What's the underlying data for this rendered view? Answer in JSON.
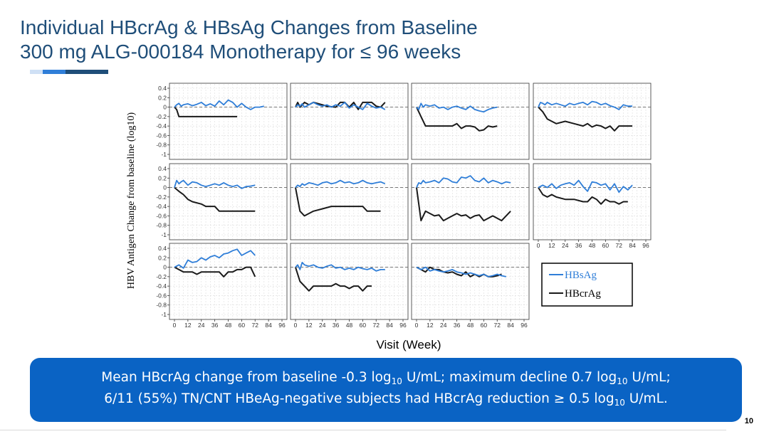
{
  "slide": {
    "title_line1": "Individual HBcrAg & HBsAg Changes from Baseline",
    "title_line2": "300 mg ALG-000184 Monotherapy for ≤ 96 weeks",
    "page_number": "10",
    "accent_colors": [
      "#cfe0f5",
      "#2f7ed8",
      "#1f4e79"
    ]
  },
  "callout": {
    "line1_a": "Mean HBcrAg change from baseline -0.3 log",
    "line1_sub1": "10",
    "line1_b": " U/mL; maximum decline 0.7 log",
    "line1_sub2": "10",
    "line1_c": " U/mL;",
    "line2_a": "6/11 (55%) TN/CNT HBeAg-negative subjects had HBcrAg reduction ≥ 0.5 log",
    "line2_sub": "10",
    "line2_b": " U/mL.",
    "background": "#0a63c4"
  },
  "chart_data": {
    "type": "line",
    "layout": "small multiples, 3 rows x 4 columns, 11 panels",
    "ylabel": "HBV Antigen Change from baseline (log10)",
    "xlabel": "Visit (Week)",
    "ylim": [
      -1,
      0.4
    ],
    "yticks": [
      "0.4",
      "0.2",
      "0",
      "-0.2",
      "-0.4",
      "-0.6",
      "-0.8",
      "-1"
    ],
    "xlim": [
      0,
      96
    ],
    "xticks": [
      "0",
      "12",
      "24",
      "36",
      "48",
      "60",
      "72",
      "84",
      "96"
    ],
    "grid": true,
    "reference_line": 0,
    "legend": [
      "HBsAg",
      "HBcrAg"
    ],
    "legend_position": "bottom-right",
    "colors": {
      "HBsAg": "#2f7ed8",
      "HBcrAg": "#1a1a1a"
    },
    "panels": [
      {
        "HBsAg": {
          "x": [
            0,
            2,
            4,
            6,
            8,
            12,
            16,
            20,
            24,
            28,
            32,
            36,
            40,
            44,
            48,
            52,
            56,
            60,
            64,
            68,
            72,
            76,
            80
          ],
          "y": [
            0,
            0.05,
            0.08,
            0.02,
            0.05,
            0.07,
            0.03,
            0.06,
            0.1,
            0.03,
            0.07,
            0.02,
            0.13,
            0.05,
            0.15,
            0.1,
            0,
            0.08,
            0,
            -0.05,
            0,
            0,
            0.02
          ]
        },
        "HBcrAg": {
          "x": [
            0,
            2,
            4,
            56
          ],
          "y": [
            0,
            -0.05,
            -0.2,
            -0.2
          ]
        }
      },
      {
        "HBsAg": {
          "x": [
            0,
            2,
            4,
            6,
            8,
            12,
            16,
            20,
            24,
            28,
            32,
            36,
            40,
            44,
            48,
            52,
            56,
            60,
            64,
            68,
            72,
            76,
            80
          ],
          "y": [
            0,
            0.05,
            0.02,
            0.07,
            0,
            0.05,
            0.1,
            0.05,
            0.02,
            0.05,
            0,
            0.05,
            0.02,
            0.1,
            -0.02,
            0.05,
            0,
            -0.05,
            0.08,
            0.02,
            -0.02,
            0,
            -0.05
          ]
        },
        "HBcrAg": {
          "x": [
            0,
            2,
            4,
            6,
            8,
            12,
            16,
            24,
            28,
            36,
            40,
            44,
            48,
            52,
            56,
            60,
            64,
            68,
            72,
            76,
            80
          ],
          "y": [
            0,
            0.1,
            0,
            0.05,
            0.1,
            0.05,
            0.1,
            0.05,
            0.02,
            0,
            0.1,
            0.1,
            0,
            0.1,
            -0.05,
            0.1,
            0.1,
            0.1,
            0.02,
            0,
            0.1
          ]
        }
      },
      {
        "HBsAg": {
          "x": [
            0,
            2,
            4,
            6,
            8,
            12,
            16,
            20,
            24,
            28,
            32,
            36,
            40,
            44,
            48,
            52,
            56,
            60,
            64,
            68,
            72
          ],
          "y": [
            0,
            -0.05,
            0.08,
            0,
            0.05,
            0.02,
            0.05,
            -0.02,
            0,
            -0.05,
            0,
            0.02,
            -0.02,
            -0.05,
            0.02,
            -0.05,
            -0.08,
            -0.1,
            -0.05,
            -0.02,
            0
          ]
        },
        "HBcrAg": {
          "x": [
            0,
            4,
            8,
            24,
            32,
            36,
            40,
            44,
            48,
            52,
            56,
            60,
            64,
            68,
            72
          ],
          "y": [
            0,
            -0.2,
            -0.4,
            -0.4,
            -0.4,
            -0.35,
            -0.45,
            -0.4,
            -0.4,
            -0.42,
            -0.5,
            -0.48,
            -0.4,
            -0.42,
            -0.4
          ]
        }
      },
      {
        "HBsAg": {
          "x": [
            0,
            2,
            4,
            6,
            8,
            12,
            16,
            20,
            24,
            28,
            32,
            36,
            40,
            44,
            48,
            52,
            56,
            60,
            64,
            68,
            72,
            76,
            80,
            84
          ],
          "y": [
            0,
            0.1,
            0.08,
            0.05,
            0.1,
            0.05,
            0.08,
            0.05,
            0.02,
            0.08,
            0.05,
            0.08,
            0.1,
            0.05,
            0.12,
            0.1,
            0.05,
            0.08,
            0.03,
            0,
            -0.05,
            0.05,
            0.02,
            0.02
          ]
        },
        "HBcrAg": {
          "x": [
            0,
            4,
            8,
            12,
            16,
            24,
            32,
            40,
            44,
            48,
            52,
            56,
            60,
            64,
            68,
            72,
            76,
            80,
            84
          ],
          "y": [
            0,
            -0.1,
            -0.25,
            -0.3,
            -0.35,
            -0.3,
            -0.35,
            -0.4,
            -0.35,
            -0.42,
            -0.38,
            -0.4,
            -0.45,
            -0.4,
            -0.5,
            -0.4,
            -0.4,
            -0.4,
            -0.4
          ]
        }
      },
      {
        "HBsAg": {
          "x": [
            0,
            2,
            4,
            6,
            8,
            12,
            16,
            20,
            24,
            28,
            32,
            36,
            40,
            44,
            48,
            52,
            56,
            60,
            64,
            68,
            72
          ],
          "y": [
            0,
            0.15,
            0.08,
            0.12,
            0.15,
            0.05,
            0.12,
            0.1,
            0.05,
            0.02,
            0.05,
            0.08,
            0.05,
            0.1,
            0.05,
            0.02,
            0.05,
            -0.02,
            0.02,
            0.03,
            0.05
          ]
        },
        "HBcrAg": {
          "x": [
            0,
            4,
            8,
            12,
            16,
            24,
            28,
            32,
            36,
            40,
            44,
            72
          ],
          "y": [
            0,
            -0.08,
            -0.15,
            -0.25,
            -0.3,
            -0.35,
            -0.4,
            -0.4,
            -0.4,
            -0.5,
            -0.5,
            -0.5
          ]
        }
      },
      {
        "HBsAg": {
          "x": [
            0,
            2,
            4,
            6,
            8,
            12,
            16,
            20,
            24,
            28,
            32,
            36,
            40,
            44,
            48,
            52,
            56,
            60,
            64,
            68,
            72,
            76,
            80
          ],
          "y": [
            0,
            0.05,
            0.02,
            0.08,
            0.05,
            0.1,
            0.08,
            0.05,
            0.1,
            0.12,
            0.08,
            0.1,
            0.15,
            0.1,
            0.12,
            0.08,
            0.1,
            0.15,
            0.1,
            0.08,
            0.1,
            0.12,
            0.08
          ]
        },
        "HBcrAg": {
          "x": [
            0,
            4,
            8,
            16,
            24,
            32,
            40,
            56,
            60,
            64,
            68,
            72,
            76
          ],
          "y": [
            0,
            -0.5,
            -0.6,
            -0.5,
            -0.45,
            -0.4,
            -0.4,
            -0.4,
            -0.4,
            -0.5,
            -0.5,
            -0.5,
            -0.5
          ]
        }
      },
      {
        "HBsAg": {
          "x": [
            0,
            2,
            4,
            6,
            8,
            12,
            16,
            20,
            24,
            28,
            32,
            36,
            40,
            44,
            48,
            52,
            56,
            60,
            64,
            68,
            72,
            76,
            80,
            84
          ],
          "y": [
            0,
            0.1,
            0.08,
            0.15,
            0.1,
            0.12,
            0.15,
            0.1,
            0.2,
            0.18,
            0.12,
            0.1,
            0.22,
            0.2,
            0.25,
            0.15,
            0.12,
            0.2,
            0.1,
            0.15,
            0.12,
            0.08,
            0.12,
            0.1
          ]
        },
        "HBcrAg": {
          "x": [
            0,
            4,
            8,
            12,
            16,
            20,
            24,
            28,
            32,
            36,
            40,
            44,
            48,
            52,
            56,
            60,
            64,
            68,
            72,
            76,
            80,
            84
          ],
          "y": [
            0,
            -0.7,
            -0.5,
            -0.55,
            -0.6,
            -0.58,
            -0.7,
            -0.65,
            -0.6,
            -0.55,
            -0.6,
            -0.58,
            -0.65,
            -0.6,
            -0.58,
            -0.7,
            -0.65,
            -0.6,
            -0.65,
            -0.7,
            -0.6,
            -0.5
          ]
        }
      },
      {
        "HBsAg": {
          "x": [
            0,
            4,
            8,
            12,
            16,
            20,
            24,
            28,
            32,
            36,
            40,
            44,
            48,
            52,
            56,
            60,
            64,
            68,
            72,
            76,
            80,
            84
          ],
          "y": [
            0,
            0.05,
            0,
            0.08,
            -0.02,
            0.05,
            0.08,
            0.1,
            0.05,
            0.15,
            0.02,
            -0.08,
            0.12,
            0.1,
            0.05,
            0.08,
            -0.05,
            0.08,
            -0.1,
            0.02,
            -0.05,
            0.05
          ]
        },
        "HBcrAg": {
          "x": [
            0,
            4,
            8,
            12,
            16,
            24,
            32,
            40,
            44,
            48,
            52,
            56,
            60,
            64,
            68,
            72,
            76,
            80
          ],
          "y": [
            0,
            -0.15,
            -0.2,
            -0.15,
            -0.2,
            -0.25,
            -0.25,
            -0.3,
            -0.3,
            -0.2,
            -0.25,
            -0.35,
            -0.25,
            -0.3,
            -0.3,
            -0.35,
            -0.3,
            -0.3
          ]
        }
      },
      {
        "HBsAg": {
          "x": [
            0,
            4,
            8,
            12,
            16,
            20,
            24,
            28,
            32,
            36,
            40,
            44,
            48,
            52,
            56,
            60,
            64,
            68,
            72
          ],
          "y": [
            0,
            0.05,
            -0.02,
            0.15,
            0.1,
            0.12,
            0.2,
            0.15,
            0.22,
            0.25,
            0.2,
            0.28,
            0.3,
            0.35,
            0.38,
            0.25,
            0.3,
            0.35,
            0.25
          ]
        },
        "HBcrAg": {
          "x": [
            0,
            4,
            8,
            16,
            20,
            24,
            36,
            40,
            44,
            48,
            52,
            56,
            60,
            64,
            68,
            72
          ],
          "y": [
            0,
            -0.05,
            -0.1,
            -0.1,
            -0.15,
            -0.1,
            -0.1,
            -0.1,
            -0.2,
            -0.1,
            -0.1,
            -0.05,
            -0.05,
            0,
            0,
            -0.2
          ]
        }
      },
      {
        "HBsAg": {
          "x": [
            0,
            2,
            4,
            6,
            8,
            12,
            16,
            20,
            24,
            28,
            32,
            36,
            40,
            44,
            48,
            52,
            56,
            60,
            64,
            68,
            72,
            76,
            80
          ],
          "y": [
            0,
            0.05,
            -0.05,
            0.1,
            0.05,
            0.02,
            0.05,
            0,
            -0.02,
            0.02,
            0.05,
            -0.02,
            0,
            -0.05,
            -0.02,
            -0.05,
            0,
            -0.03,
            -0.05,
            -0.02,
            -0.08,
            -0.05,
            -0.05
          ]
        },
        "HBcrAg": {
          "x": [
            0,
            4,
            8,
            12,
            16,
            24,
            32,
            36,
            40,
            44,
            48,
            52,
            56,
            60,
            64,
            68
          ],
          "y": [
            0,
            -0.3,
            -0.4,
            -0.5,
            -0.4,
            -0.4,
            -0.4,
            -0.35,
            -0.4,
            -0.4,
            -0.45,
            -0.4,
            -0.4,
            -0.5,
            -0.4,
            -0.4
          ]
        }
      },
      {
        "HBsAg": {
          "x": [
            0,
            4,
            8,
            12,
            16,
            20,
            24,
            28,
            32,
            36,
            40,
            44,
            48,
            52,
            56,
            60,
            64,
            68,
            72,
            76,
            80
          ],
          "y": [
            0,
            -0.05,
            0,
            -0.08,
            -0.05,
            -0.08,
            -0.1,
            -0.08,
            -0.05,
            -0.1,
            -0.12,
            -0.15,
            -0.12,
            -0.15,
            -0.18,
            -0.15,
            -0.2,
            -0.18,
            -0.15,
            -0.18,
            -0.2
          ]
        },
        "HBcrAg": {
          "x": [
            0,
            4,
            8,
            12,
            16,
            20,
            24,
            28,
            32,
            36,
            40,
            44,
            48,
            52,
            56,
            60,
            64,
            68,
            72,
            76
          ],
          "y": [
            0,
            -0.05,
            -0.1,
            0,
            -0.05,
            -0.05,
            -0.1,
            -0.12,
            -0.1,
            -0.15,
            -0.18,
            -0.1,
            -0.2,
            -0.15,
            -0.2,
            -0.15,
            -0.2,
            -0.2,
            -0.18,
            -0.15
          ]
        }
      }
    ]
  }
}
